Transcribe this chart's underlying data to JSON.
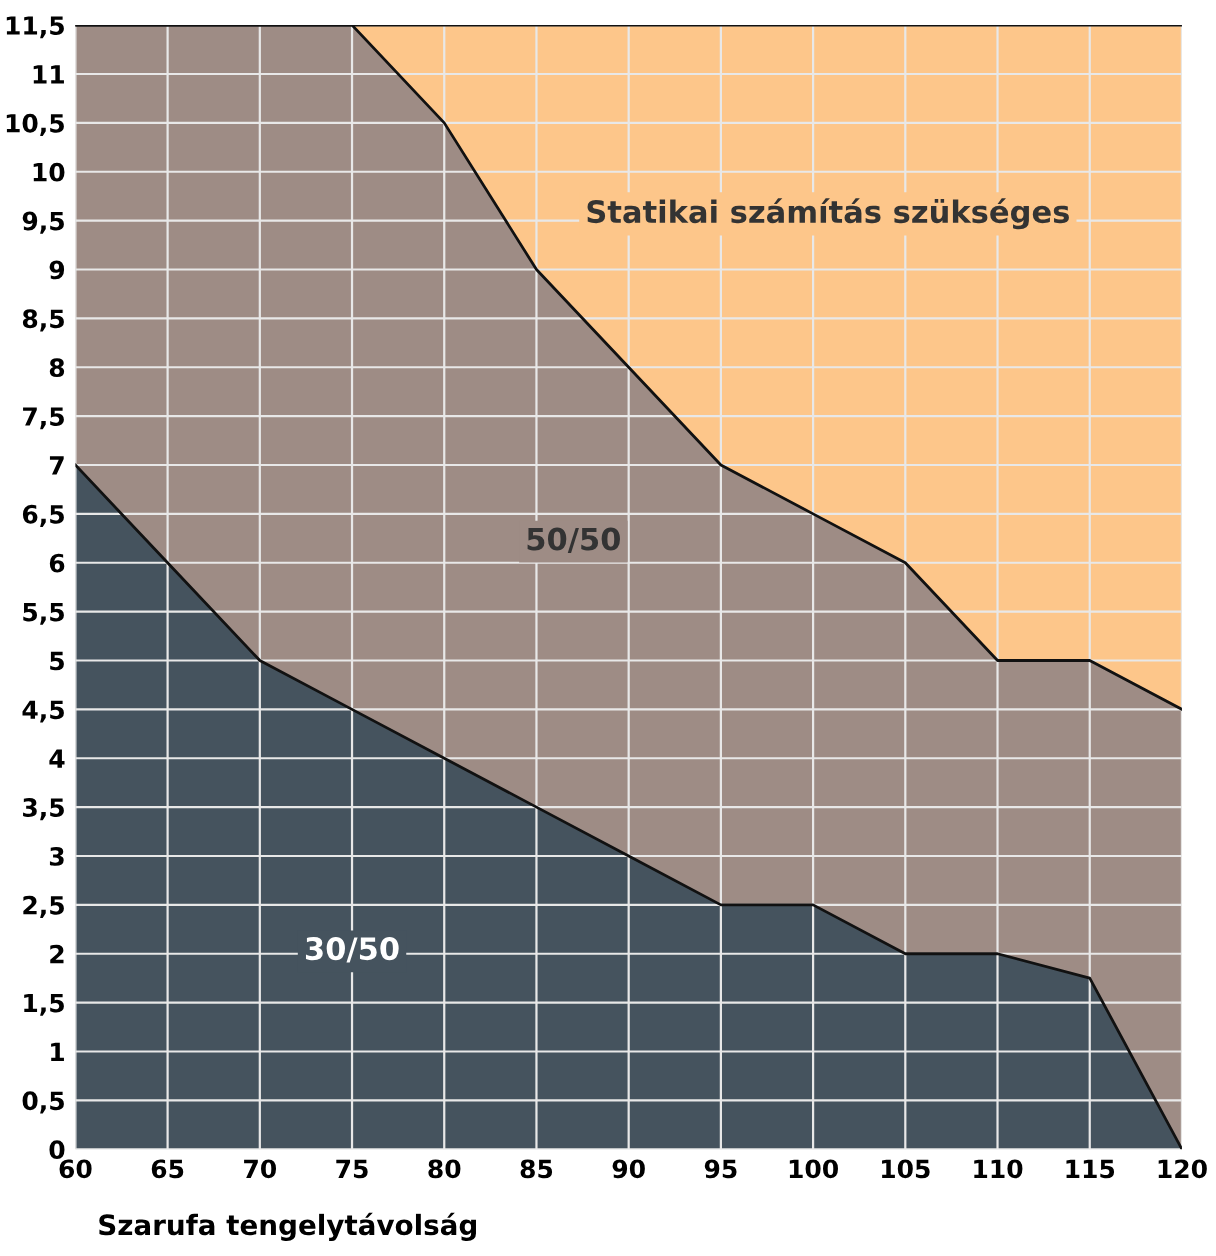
{
  "chart_data": {
    "type": "area",
    "stacked": true,
    "xlabel": "Szarufa tengelytávolság",
    "x": [
      60,
      65,
      70,
      75,
      80,
      85,
      90,
      95,
      100,
      105,
      110,
      115,
      120
    ],
    "series": [
      {
        "name": "30/50",
        "color": "#45535e",
        "values": [
          7,
          6,
          5,
          4.5,
          4,
          3.5,
          3,
          2.5,
          2.5,
          2,
          2,
          1.75,
          0
        ]
      },
      {
        "name": "50/50",
        "color": "#9e8c85",
        "values": [
          4.5,
          5.5,
          6.5,
          7,
          6.5,
          5.5,
          5,
          4.5,
          4,
          4,
          3,
          3.25,
          4.5
        ]
      },
      {
        "name": "Statikai számítás szükséges",
        "color": "#fdc68a",
        "values": [
          0,
          0,
          0,
          0,
          1,
          2.5,
          3.5,
          4.5,
          5,
          5.5,
          6.5,
          6.5,
          7
        ]
      }
    ],
    "xlim": [
      60,
      120
    ],
    "ylim": [
      0,
      11.5
    ],
    "xticks": [
      60,
      65,
      70,
      75,
      80,
      85,
      90,
      95,
      100,
      105,
      110,
      115,
      120
    ],
    "yticks": [
      0,
      {
        "value": 0.5,
        "label": "0,5"
      },
      1,
      {
        "value": 1.5,
        "label": "1,5"
      },
      2,
      {
        "value": 2.5,
        "label": "2,5"
      },
      3,
      {
        "value": 3.5,
        "label": "3,5"
      },
      4,
      {
        "value": 4.5,
        "label": "4,5"
      },
      5,
      {
        "value": 5.5,
        "label": "5,5"
      },
      6,
      {
        "value": 6.5,
        "label": "6,5"
      },
      7,
      {
        "value": 7.5,
        "label": "7,5"
      },
      8,
      {
        "value": 8.5,
        "label": "8,5"
      },
      9,
      {
        "value": 9.5,
        "label": "9,5"
      },
      10,
      {
        "value": 10.5,
        "label": "10,5"
      },
      11,
      {
        "value": 11.5,
        "label": "11,5"
      }
    ],
    "grid": true,
    "legend": false
  }
}
